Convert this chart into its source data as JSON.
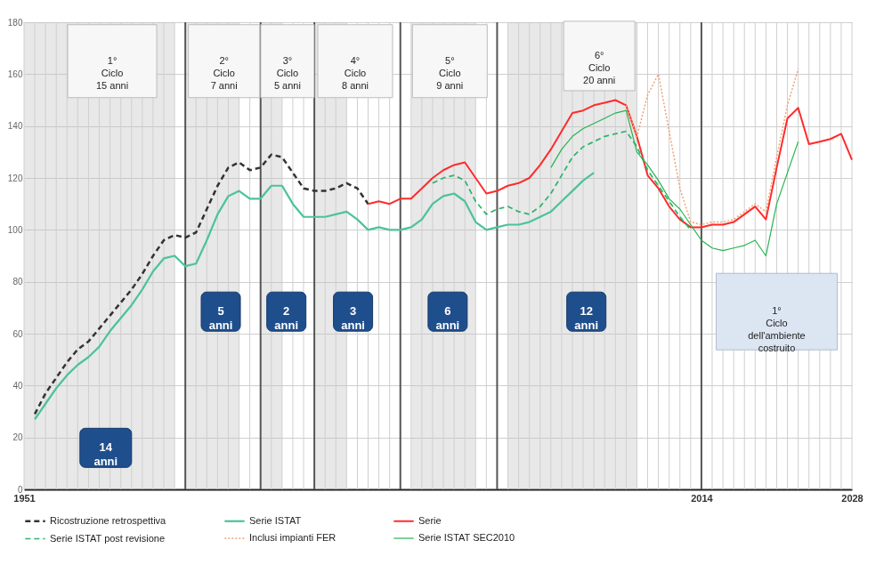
{
  "chart_data": {
    "type": "line",
    "xlim": [
      1951,
      2028
    ],
    "ylim": [
      0,
      180
    ],
    "yticks": [
      0,
      20,
      40,
      60,
      80,
      100,
      120,
      140,
      160,
      180
    ],
    "xticks": [
      1951,
      {
        "value": 1952,
        "label": null
      },
      {
        "value": 1953,
        "label": null
      },
      {
        "value": 1954,
        "label": null
      },
      {
        "value": 1955,
        "label": null
      },
      {
        "value": 1956,
        "label": null
      },
      {
        "value": 1957,
        "label": null
      },
      {
        "value": 1958,
        "label": null
      },
      {
        "value": 1959,
        "label": null
      },
      {
        "value": 1960,
        "label": null
      },
      {
        "value": 1961,
        "label": null
      },
      {
        "value": 1962,
        "label": null
      },
      {
        "value": 1963,
        "label": null
      },
      {
        "value": 1964,
        "label": null
      },
      {
        "value": 1965,
        "label": null
      },
      {
        "value": 1967,
        "label": null
      },
      {
        "value": 1968,
        "label": null
      },
      {
        "value": 1969,
        "label": null
      },
      {
        "value": 1970,
        "label": null
      },
      {
        "value": 1971,
        "label": null
      },
      {
        "value": 1972,
        "label": null
      },
      {
        "value": 1974,
        "label": null
      },
      {
        "value": 1975,
        "label": null
      },
      {
        "value": 1976,
        "label": null
      },
      {
        "value": 1977,
        "label": null
      },
      {
        "value": 1979,
        "label": null
      },
      {
        "value": 1980,
        "label": null
      },
      {
        "value": 1981,
        "label": null
      },
      {
        "value": 1982,
        "label": null
      },
      {
        "value": 1983,
        "label": null
      },
      {
        "value": 1984,
        "label": null
      },
      {
        "value": 1985,
        "label": null
      },
      {
        "value": 1987,
        "label": null
      },
      {
        "value": 1988,
        "label": null
      },
      {
        "value": 1989,
        "label": null
      },
      {
        "value": 1990,
        "label": null
      },
      {
        "value": 1991,
        "label": null
      },
      {
        "value": 1992,
        "label": null
      },
      {
        "value": 1993,
        "label": null
      },
      {
        "value": 1994,
        "label": null
      },
      {
        "value": 1996,
        "label": null
      },
      {
        "value": 1997,
        "label": null
      },
      {
        "value": 1998,
        "label": null
      },
      {
        "value": 1999,
        "label": null
      },
      {
        "value": 2000,
        "label": null
      },
      {
        "value": 2001,
        "label": null
      },
      {
        "value": 2002,
        "label": null
      },
      {
        "value": 2003,
        "label": null
      },
      {
        "value": 2004,
        "label": null
      },
      {
        "value": 2005,
        "label": null
      },
      {
        "value": 2006,
        "label": null
      },
      {
        "value": 2007,
        "label": null
      },
      {
        "value": 2008,
        "label": null
      },
      {
        "value": 2009,
        "label": null
      },
      {
        "value": 2010,
        "label": null
      },
      {
        "value": 2011,
        "label": null
      },
      {
        "value": 2012,
        "label": null
      },
      {
        "value": 2013,
        "label": null
      },
      2014,
      {
        "value": 2015,
        "label": null
      },
      {
        "value": 2016,
        "label": null
      },
      {
        "value": 2017,
        "label": null
      },
      {
        "value": 2018,
        "label": null
      },
      {
        "value": 2019,
        "label": null
      },
      {
        "value": 2020,
        "label": null
      },
      {
        "value": 2021,
        "label": null
      },
      {
        "value": 2022,
        "label": null
      },
      {
        "value": 2023,
        "label": null
      },
      {
        "value": 2024,
        "label": null
      },
      {
        "value": 2025,
        "label": null
      },
      {
        "value": 2026,
        "label": null
      },
      {
        "value": 2027,
        "label": null
      },
      2028
    ],
    "grid": true,
    "legend": "bottom",
    "marker": "none",
    "series": [
      {
        "name": "Ricostruzione retrospettiva",
        "color": "#333333",
        "line_style": "dashed",
        "x": [
          1952,
          1953,
          1954,
          1955,
          1956,
          1957,
          1958,
          1959,
          1960,
          1961,
          1962,
          1963,
          1964,
          1965,
          1966,
          1967,
          1968,
          1969,
          1970,
          1971,
          1972,
          1973,
          1974,
          1975,
          1976,
          1977,
          1978,
          1979,
          1980,
          1981,
          1982,
          1983
        ],
        "values": [
          29,
          37,
          43,
          49,
          54,
          57,
          62,
          67,
          72,
          77,
          83,
          90,
          96,
          98,
          97,
          99,
          108,
          117,
          124,
          126,
          123,
          124,
          129,
          128,
          122,
          116,
          115,
          115,
          116,
          118,
          116,
          110
        ]
      },
      {
        "name": "Serie ISTAT",
        "color": "#4cc39a",
        "line_style": "solid",
        "x": [
          1952,
          1953,
          1954,
          1955,
          1956,
          1957,
          1958,
          1959,
          1960,
          1961,
          1962,
          1963,
          1964,
          1965,
          1966,
          1967,
          1968,
          1969,
          1970,
          1971,
          1972,
          1973,
          1974,
          1975,
          1976,
          1977,
          1978,
          1979,
          1980,
          1981,
          1982,
          1983,
          1984,
          1985,
          1986,
          1987,
          1988,
          1989,
          1990,
          1991,
          1992,
          1993,
          1994,
          1995,
          1996,
          1997,
          1998,
          1999,
          2000,
          2001,
          2002,
          2003,
          2004
        ],
        "values": [
          27,
          33,
          39,
          44,
          48,
          51,
          55,
          61,
          66,
          71,
          77,
          84,
          89,
          90,
          86,
          87,
          96,
          106,
          113,
          115,
          112,
          112,
          117,
          117,
          110,
          105,
          105,
          105,
          106,
          107,
          104,
          100,
          101,
          100,
          100,
          101,
          104,
          110,
          113,
          114,
          111,
          103,
          100,
          101,
          102,
          102,
          103,
          105,
          107,
          111,
          115,
          119,
          122
        ]
      },
      {
        "name": "Serie",
        "color": "#ff2a2a",
        "line_style": "solid",
        "x": [
          1983,
          1984,
          1985,
          1986,
          1987,
          1988,
          1989,
          1990,
          1991,
          1992,
          1993,
          1994,
          1995,
          1996,
          1997,
          1998,
          1999,
          2000,
          2001,
          2002,
          2003,
          2004,
          2005,
          2006,
          2007,
          2008,
          2009,
          2010,
          2011,
          2012,
          2013,
          2014,
          2015,
          2016,
          2017,
          2018,
          2019,
          2020,
          2021,
          2022,
          2023,
          2024,
          2025,
          2026,
          2027,
          2028
        ],
        "values": [
          110,
          111,
          110,
          112,
          112,
          116,
          120,
          123,
          125,
          126,
          120,
          114,
          115,
          117,
          118,
          120,
          125,
          131,
          138,
          145,
          146,
          148,
          149,
          150,
          148,
          136,
          121,
          116,
          109,
          104,
          101,
          101,
          102,
          102,
          103,
          106,
          109,
          104,
          124,
          143,
          147,
          133,
          134,
          135,
          137,
          127
        ]
      },
      {
        "name": "Serie ISTAT post revisione",
        "color": "#2db36b",
        "line_style": "dashed",
        "x": [
          1989,
          1990,
          1991,
          1992,
          1993,
          1994,
          1995,
          1996,
          1997,
          1998,
          1999,
          2000,
          2001,
          2002,
          2003,
          2004,
          2005,
          2006,
          2007,
          2008,
          2009,
          2010,
          2011,
          2012,
          2013
        ],
        "values": [
          118,
          120,
          121,
          119,
          111,
          106,
          108,
          109,
          107,
          106,
          109,
          114,
          121,
          128,
          132,
          134,
          136,
          137,
          138,
          132,
          123,
          117,
          111,
          105,
          100
        ]
      },
      {
        "name": "Inclusi impianti FER",
        "color": "#f0a070",
        "line_style": "dotted",
        "x": [
          2007,
          2008,
          2009,
          2010,
          2011,
          2012,
          2013,
          2014,
          2015,
          2016,
          2017,
          2018,
          2019,
          2020,
          2021,
          2022,
          2023
        ],
        "values": [
          148,
          136,
          152,
          160,
          138,
          116,
          103,
          102,
          103,
          103,
          104,
          107,
          110,
          107,
          128,
          148,
          162
        ]
      },
      {
        "name": "Serie ISTAT SEC2010",
        "color": "#27b34f",
        "line_style": "solid",
        "x": [
          2000,
          2001,
          2002,
          2003,
          2004,
          2005,
          2006,
          2007,
          2008,
          2009,
          2010,
          2011,
          2012,
          2013,
          2014,
          2015,
          2016,
          2017,
          2018,
          2019,
          2020,
          2021,
          2022,
          2023
        ],
        "values": [
          124,
          131,
          136,
          139,
          141,
          143,
          145,
          146,
          130,
          125,
          119,
          112,
          108,
          102,
          96,
          93,
          92,
          93,
          94,
          96,
          90,
          110,
          122,
          134
        ]
      }
    ],
    "ref_lines": [
      {
        "axis": "x",
        "value": 1966
      },
      {
        "axis": "x",
        "value": 1973
      },
      {
        "axis": "x",
        "value": 1978
      },
      {
        "axis": "x",
        "value": 1986
      },
      {
        "axis": "x",
        "value": 1995
      },
      {
        "axis": "x",
        "value": 2014
      }
    ],
    "bands": [
      {
        "axis": "x",
        "from": 1951,
        "to": 1965
      },
      {
        "axis": "x",
        "from": 1966,
        "to": 1971
      },
      {
        "axis": "x",
        "from": 1973,
        "to": 1975
      },
      {
        "axis": "x",
        "from": 1978,
        "to": 1981
      },
      {
        "axis": "x",
        "from": 1987,
        "to": 1993
      },
      {
        "axis": "x",
        "from": 1996,
        "to": 2008
      }
    ],
    "annotations": [
      "1°\nCiclo\n15 anni",
      "2°\nCiclo\n7 anni",
      "3°\nCiclo\n5 anni",
      "4°\nCiclo\n8 anni",
      "5°\nCiclo\n9 anni",
      "6°\nCiclo\n20 anni",
      "14\nanni",
      "5\nanni",
      "2\nanni",
      "3\nanni",
      "6\nanni",
      "12\nanni",
      "1°\nCiclo\ndell'ambiente\ncostruito"
    ]
  }
}
